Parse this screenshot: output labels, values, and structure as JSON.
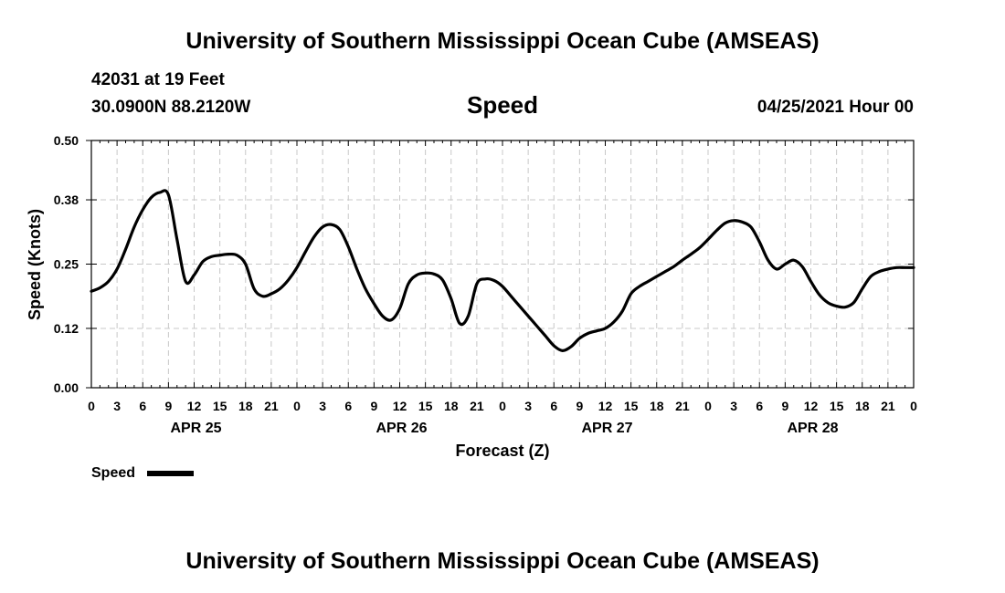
{
  "header": {
    "title_top": "University of Southern Mississippi Ocean Cube (AMSEAS)",
    "title_bottom": "University of Southern Mississippi Ocean Cube (AMSEAS)",
    "station": "42031 at 19 Feet",
    "coords": "30.0900N  88.2120W",
    "variable": "Speed",
    "datetime": "04/25/2021 Hour 00"
  },
  "legend": {
    "label": "Speed"
  },
  "chart_data": {
    "type": "line",
    "title": "Speed",
    "xlabel": "Forecast (Z)",
    "ylabel": "Speed (Knots)",
    "ylim": [
      0,
      0.5
    ],
    "xlim_hours": [
      0,
      96
    ],
    "y_ticks": [
      "0.00",
      "0.12",
      "0.25",
      "0.38",
      "0.50"
    ],
    "x_tick_hours": [
      0,
      3,
      6,
      9,
      12,
      15,
      18,
      21,
      24,
      27,
      30,
      33,
      36,
      39,
      42,
      45,
      48,
      51,
      54,
      57,
      60,
      63,
      66,
      69,
      72,
      75,
      78,
      81,
      84,
      87,
      90,
      93,
      96
    ],
    "x_tick_labels": [
      "0",
      "3",
      "6",
      "9",
      "12",
      "15",
      "18",
      "21",
      "0",
      "3",
      "6",
      "9",
      "12",
      "15",
      "18",
      "21",
      "0",
      "3",
      "6",
      "9",
      "12",
      "15",
      "18",
      "21",
      "0",
      "3",
      "6",
      "9",
      "12",
      "15",
      "18",
      "21",
      "0"
    ],
    "date_labels": [
      {
        "hour": 12,
        "label": "APR 25"
      },
      {
        "hour": 36,
        "label": "APR 26"
      },
      {
        "hour": 60,
        "label": "APR 27"
      },
      {
        "hour": 84,
        "label": "APR 28"
      }
    ],
    "grid": true,
    "series": [
      {
        "name": "Speed",
        "x": [
          0,
          1,
          2,
          3,
          4,
          5,
          6,
          7,
          8,
          9,
          10,
          11,
          12,
          13,
          14,
          15,
          16,
          17,
          18,
          19,
          20,
          21,
          22,
          23,
          24,
          25,
          26,
          27,
          28,
          29,
          30,
          31,
          32,
          33,
          34,
          35,
          36,
          37,
          38,
          39,
          40,
          41,
          42,
          43,
          44,
          45,
          46,
          47,
          48,
          49,
          50,
          51,
          52,
          53,
          54,
          55,
          56,
          57,
          58,
          59,
          60,
          61,
          62,
          63,
          64,
          65,
          66,
          67,
          68,
          69,
          70,
          71,
          72,
          73,
          74,
          75,
          76,
          77,
          78,
          79,
          80,
          81,
          82,
          83,
          84,
          85,
          86,
          87,
          88,
          89,
          90,
          91,
          92,
          93,
          94,
          95,
          96
        ],
        "values": [
          0.195,
          0.202,
          0.215,
          0.24,
          0.28,
          0.325,
          0.36,
          0.385,
          0.395,
          0.39,
          0.3,
          0.215,
          0.228,
          0.255,
          0.265,
          0.268,
          0.27,
          0.268,
          0.25,
          0.2,
          0.185,
          0.19,
          0.2,
          0.218,
          0.243,
          0.275,
          0.305,
          0.325,
          0.33,
          0.32,
          0.285,
          0.24,
          0.2,
          0.17,
          0.145,
          0.137,
          0.16,
          0.21,
          0.228,
          0.232,
          0.23,
          0.218,
          0.18,
          0.13,
          0.145,
          0.21,
          0.22,
          0.217,
          0.205,
          0.185,
          0.165,
          0.145,
          0.125,
          0.105,
          0.085,
          0.075,
          0.083,
          0.1,
          0.11,
          0.115,
          0.12,
          0.133,
          0.155,
          0.19,
          0.205,
          0.215,
          0.225,
          0.235,
          0.245,
          0.258,
          0.27,
          0.283,
          0.3,
          0.318,
          0.333,
          0.338,
          0.335,
          0.325,
          0.295,
          0.258,
          0.24,
          0.25,
          0.258,
          0.245,
          0.215,
          0.188,
          0.172,
          0.165,
          0.163,
          0.172,
          0.2,
          0.225,
          0.235,
          0.24,
          0.243,
          0.243,
          0.243
        ]
      }
    ]
  }
}
